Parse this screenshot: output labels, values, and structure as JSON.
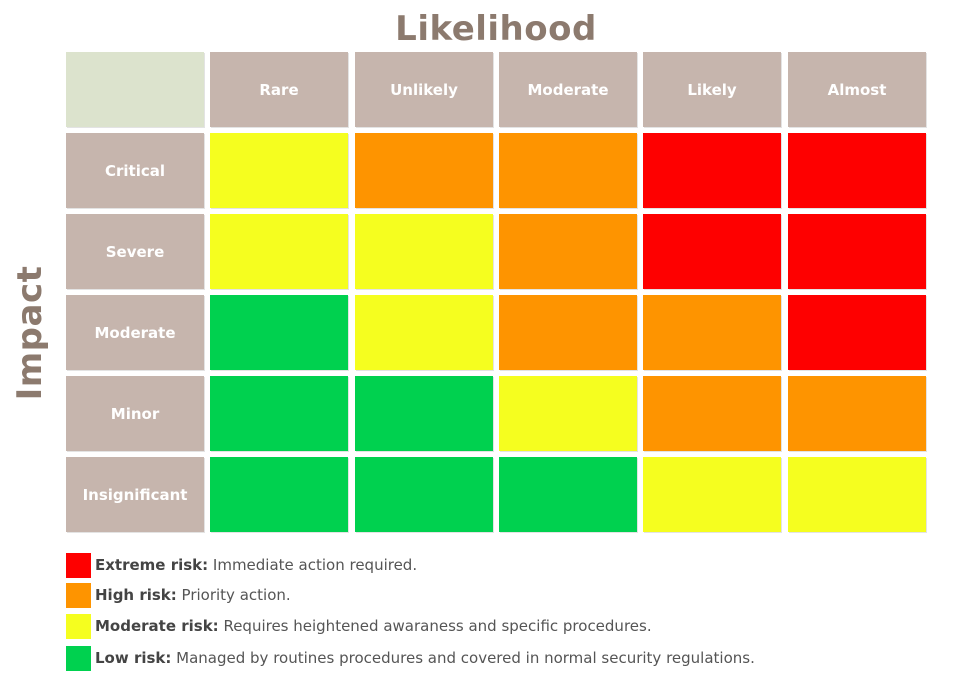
{
  "x_axis_title": "Likelihood",
  "y_axis_title": "Impact",
  "colors": {
    "extreme": "#fe0000",
    "high": "#fe9400",
    "moderate": "#f5fe1f",
    "low": "#00d14f",
    "header": "#c6b5ad",
    "corner": "#dce3cd"
  },
  "likelihood_levels": [
    "Rare",
    "Unlikely",
    "Moderate",
    "Likely",
    "Almost"
  ],
  "impact_levels": [
    "Critical",
    "Severe",
    "Moderate",
    "Minor",
    "Insignificant"
  ],
  "matrix": [
    [
      "moderate",
      "high",
      "high",
      "extreme",
      "extreme"
    ],
    [
      "moderate",
      "moderate",
      "high",
      "extreme",
      "extreme"
    ],
    [
      "low",
      "moderate",
      "high",
      "high",
      "extreme"
    ],
    [
      "low",
      "low",
      "moderate",
      "high",
      "high"
    ],
    [
      "low",
      "low",
      "low",
      "moderate",
      "moderate"
    ]
  ],
  "legend": [
    {
      "key": "extreme",
      "label": "Extreme risk:",
      "description": "Immediate action required."
    },
    {
      "key": "high",
      "label": "High risk:",
      "description": "Priority action."
    },
    {
      "key": "moderate",
      "label": "Moderate risk:",
      "description": "Requires heightened awaraness and specific procedures."
    },
    {
      "key": "low",
      "label": "Low risk:",
      "description": "Managed by routines procedures and covered in normal security regulations."
    }
  ]
}
